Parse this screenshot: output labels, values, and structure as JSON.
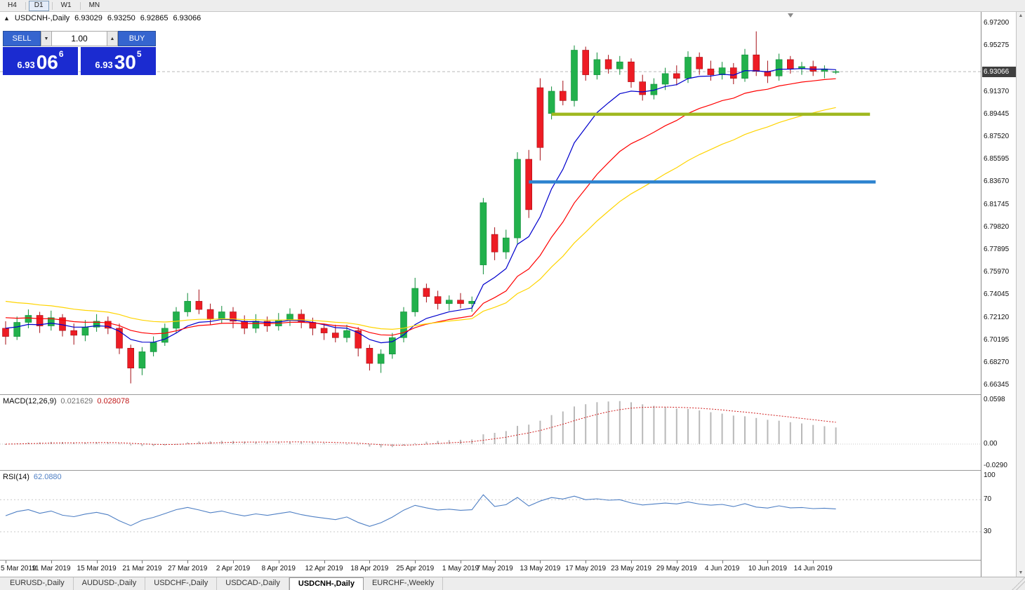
{
  "colors": {
    "candle_up": "#22b14c",
    "candle_up_dark": "#0f8c38",
    "candle_down": "#ed1c24",
    "candle_down_dark": "#a50f16",
    "macd_hist": "#b9b9b9",
    "macd_signal": "#d02020",
    "rsi_line": "#4e7fc4",
    "bid_line": "#b8b8b8",
    "trade_button_blue": "#3565cf",
    "price_box_blue": "#1b2bd0",
    "badge_bg": "#3f3f3f"
  },
  "toolbar": {
    "periods": [
      "H4",
      "D1",
      "W1",
      "MN"
    ],
    "active_period": "D1"
  },
  "chart_header": {
    "collapse_icon": "▲",
    "symbol": "USDCNH-,Daily",
    "open": "6.93029",
    "high": "6.93250",
    "low": "6.92865",
    "close": "6.93066"
  },
  "trade_panel": {
    "sell_label": "SELL",
    "buy_label": "BUY",
    "volume": "1.00",
    "vol_down_icon": "▼",
    "vol_up_icon": "▲",
    "sell_price_small": "6.93",
    "sell_price_big": "06",
    "sell_price_sup": "6",
    "buy_price_small": "6.93",
    "buy_price_big": "30",
    "buy_price_sup": "5"
  },
  "price_axis": {
    "labels": [
      "6.97200",
      "6.95275",
      "6.91370",
      "6.89445",
      "6.87520",
      "6.85595",
      "6.83670",
      "6.81745",
      "6.79820",
      "6.77895",
      "6.75970",
      "6.74045",
      "6.72120",
      "6.70195",
      "6.68270",
      "6.66345"
    ],
    "current_price": "6.93066"
  },
  "macd_panel": {
    "label": "MACD(12,26,9)",
    "value_main": "0.021629",
    "value_signal": "0.028078",
    "axis": [
      "0.0598",
      "0.00",
      "-0.0290"
    ]
  },
  "rsi_panel": {
    "label": "RSI(14)",
    "value": "62.0880",
    "axis": [
      "100",
      "70",
      "30"
    ]
  },
  "date_axis": {
    "labels": [
      {
        "text": "5 Mar 2019",
        "i": 0
      },
      {
        "text": "11 Mar 2019",
        "i": 4
      },
      {
        "text": "15 Mar 2019",
        "i": 8
      },
      {
        "text": "21 Mar 2019",
        "i": 12
      },
      {
        "text": "27 Mar 2019",
        "i": 16
      },
      {
        "text": "2 Apr 2019",
        "i": 20
      },
      {
        "text": "8 Apr 2019",
        "i": 24
      },
      {
        "text": "12 Apr 2019",
        "i": 28
      },
      {
        "text": "18 Apr 2019",
        "i": 32
      },
      {
        "text": "25 Apr 2019",
        "i": 36
      },
      {
        "text": "1 May 2019",
        "i": 40
      },
      {
        "text": "7 May 2019",
        "i": 43
      },
      {
        "text": "13 May 2019",
        "i": 47
      },
      {
        "text": "17 May 2019",
        "i": 51
      },
      {
        "text": "23 May 2019",
        "i": 55
      },
      {
        "text": "29 May 2019",
        "i": 59
      },
      {
        "text": "4 Jun 2019",
        "i": 63
      },
      {
        "text": "10 Jun 2019",
        "i": 67
      },
      {
        "text": "14 Jun 2019",
        "i": 71
      }
    ]
  },
  "tabs": {
    "items": [
      "EURUSD-,Daily",
      "AUDUSD-,Daily",
      "USDCHF-,Daily",
      "USDCAD-,Daily",
      "USDCNH-,Daily",
      "EURCHF-,Weekly"
    ],
    "active": "USDCNH-,Daily"
  },
  "chart_data": {
    "type": "candlestick",
    "symbol": "USDCNH",
    "timeframe": "Daily",
    "visible_range": {
      "first_date": "5 Mar 2019",
      "last_date": "14 Jun 2019"
    },
    "bid_line": 6.93066,
    "last_ohlc": {
      "open": 6.93029,
      "high": 6.9325,
      "low": 6.92865,
      "close": 6.93066
    },
    "candles": [
      [
        6.712,
        6.718,
        6.698,
        6.705
      ],
      [
        6.705,
        6.722,
        6.702,
        6.717
      ],
      [
        6.717,
        6.728,
        6.712,
        6.723
      ],
      [
        6.723,
        6.726,
        6.708,
        6.714
      ],
      [
        6.714,
        6.727,
        6.71,
        6.721
      ],
      [
        6.721,
        6.724,
        6.705,
        6.71
      ],
      [
        6.71,
        6.716,
        6.698,
        6.706
      ],
      [
        6.706,
        6.719,
        6.701,
        6.713
      ],
      [
        6.713,
        6.724,
        6.709,
        6.718
      ],
      [
        6.718,
        6.722,
        6.707,
        6.712
      ],
      [
        6.712,
        6.716,
        6.69,
        6.695
      ],
      [
        6.695,
        6.698,
        6.665,
        6.678
      ],
      [
        6.678,
        6.696,
        6.672,
        6.692
      ],
      [
        6.692,
        6.705,
        6.688,
        6.7
      ],
      [
        6.7,
        6.716,
        6.697,
        6.712
      ],
      [
        6.712,
        6.73,
        6.708,
        6.726
      ],
      [
        6.726,
        6.742,
        6.722,
        6.735
      ],
      [
        6.735,
        6.745,
        6.724,
        6.728
      ],
      [
        6.728,
        6.733,
        6.715,
        6.72
      ],
      [
        6.72,
        6.731,
        6.716,
        6.726
      ],
      [
        6.726,
        6.73,
        6.712,
        6.718
      ],
      [
        6.718,
        6.723,
        6.707,
        6.712
      ],
      [
        6.712,
        6.724,
        6.708,
        6.718
      ],
      [
        6.718,
        6.722,
        6.709,
        6.714
      ],
      [
        6.714,
        6.725,
        6.71,
        6.719
      ],
      [
        6.719,
        6.729,
        6.714,
        6.724
      ],
      [
        6.724,
        6.728,
        6.712,
        6.717
      ],
      [
        6.717,
        6.721,
        6.706,
        6.712
      ],
      [
        6.712,
        6.716,
        6.702,
        6.708
      ],
      [
        6.708,
        6.715,
        6.7,
        6.704
      ],
      [
        6.704,
        6.715,
        6.7,
        6.71
      ],
      [
        6.71,
        6.713,
        6.688,
        6.695
      ],
      [
        6.695,
        6.698,
        6.676,
        6.682
      ],
      [
        6.682,
        6.694,
        6.674,
        6.69
      ],
      [
        6.69,
        6.708,
        6.686,
        6.704
      ],
      [
        6.704,
        6.73,
        6.7,
        6.726
      ],
      [
        6.726,
        6.755,
        6.722,
        6.746
      ],
      [
        6.746,
        6.75,
        6.734,
        6.739
      ],
      [
        6.739,
        6.744,
        6.728,
        6.733
      ],
      [
        6.733,
        6.74,
        6.727,
        6.736
      ],
      [
        6.736,
        6.742,
        6.729,
        6.733
      ],
      [
        6.733,
        6.739,
        6.726,
        6.735
      ],
      [
        6.766,
        6.823,
        6.758,
        6.819
      ],
      [
        6.792,
        6.798,
        6.77,
        6.777
      ],
      [
        6.777,
        6.796,
        6.771,
        6.789
      ],
      [
        6.789,
        6.862,
        6.784,
        6.856
      ],
      [
        6.856,
        6.864,
        6.806,
        6.813
      ],
      [
        6.917,
        6.925,
        6.855,
        6.866
      ],
      [
        6.895,
        6.918,
        6.89,
        6.914
      ],
      [
        6.914,
        6.923,
        6.902,
        6.906
      ],
      [
        6.906,
        6.953,
        6.901,
        6.949
      ],
      [
        6.949,
        6.952,
        6.923,
        6.928
      ],
      [
        6.928,
        6.947,
        6.924,
        6.941
      ],
      [
        6.941,
        6.945,
        6.929,
        6.933
      ],
      [
        6.933,
        6.944,
        6.928,
        6.939
      ],
      [
        6.939,
        6.942,
        6.917,
        6.922
      ],
      [
        6.922,
        6.928,
        6.906,
        6.911
      ],
      [
        6.911,
        6.925,
        6.907,
        6.92
      ],
      [
        6.92,
        6.934,
        6.915,
        6.929
      ],
      [
        6.929,
        6.936,
        6.919,
        6.925
      ],
      [
        6.925,
        6.948,
        6.921,
        6.943
      ],
      [
        6.943,
        6.947,
        6.928,
        6.933
      ],
      [
        6.933,
        6.94,
        6.923,
        6.928
      ],
      [
        6.928,
        6.939,
        6.924,
        6.934
      ],
      [
        6.934,
        6.938,
        6.92,
        6.925
      ],
      [
        6.925,
        6.95,
        6.922,
        6.945
      ],
      [
        6.945,
        6.965,
        6.927,
        6.931
      ],
      [
        6.931,
        6.94,
        6.921,
        6.927
      ],
      [
        6.927,
        6.946,
        6.923,
        6.941
      ],
      [
        6.941,
        6.944,
        6.929,
        6.933
      ],
      [
        6.933,
        6.939,
        6.928,
        6.935
      ],
      [
        6.935,
        6.94,
        6.927,
        6.931
      ],
      [
        6.931,
        6.936,
        6.925,
        6.933
      ],
      [
        6.93029,
        6.9325,
        6.92865,
        6.93066
      ]
    ],
    "moving_averages": [
      {
        "name": "fast",
        "period": 8,
        "color": "#0000cd",
        "seed": 6.714
      },
      {
        "name": "medium",
        "period": 17,
        "color": "#ff0000",
        "seed": 6.723
      },
      {
        "name": "slow",
        "period": 30,
        "color": "#ffd400",
        "seed": 6.737
      }
    ],
    "horizontal_lines": [
      {
        "price": 6.8944,
        "color": "#a0b820",
        "from_index": 48,
        "to_index": 76
      },
      {
        "price": 6.8367,
        "color": "#2d83cf",
        "from_index": 46,
        "to_index": 76.5
      }
    ],
    "indicators": {
      "macd": {
        "fast": 12,
        "slow": 26,
        "signal": 9,
        "main_value": 0.021629,
        "signal_value": 0.028078,
        "scale_max": 0.0598,
        "scale_min": -0.029
      },
      "rsi": {
        "period": 14,
        "value": 62.088,
        "levels": [
          70,
          30
        ]
      }
    }
  }
}
